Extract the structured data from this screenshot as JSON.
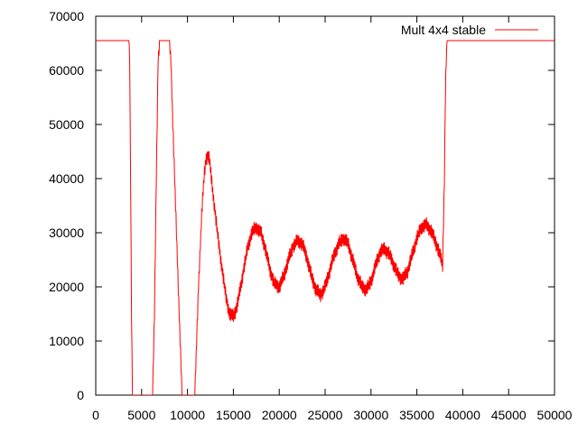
{
  "chart_data": {
    "type": "line",
    "title": "",
    "xlabel": "",
    "ylabel": "",
    "xlim": [
      0,
      50000
    ],
    "ylim": [
      0,
      70000
    ],
    "x_ticks": [
      0,
      5000,
      10000,
      15000,
      20000,
      25000,
      30000,
      35000,
      40000,
      45000,
      50000
    ],
    "y_ticks": [
      0,
      10000,
      20000,
      30000,
      40000,
      50000,
      60000,
      70000
    ],
    "x_tick_labels": [
      "0",
      "5000",
      "10000",
      "15000",
      "20000",
      "25000",
      "30000",
      "35000",
      "40000",
      "45000",
      "50000"
    ],
    "y_tick_labels": [
      "0",
      "10000",
      "20000",
      "30000",
      "40000",
      "50000",
      "60000",
      "70000"
    ],
    "grid": false,
    "legend_position": "top-right",
    "series": [
      {
        "name": "Mult 4x4 stable",
        "color": "#ff0000",
        "noise_amplitude": 1500,
        "x": [
          0,
          3600,
          3700,
          3800,
          3900,
          4000,
          6200,
          6400,
          6600,
          6800,
          7000,
          8000,
          8200,
          8400,
          8600,
          8800,
          9000,
          9200,
          9400,
          10800,
          11000,
          11200,
          11400,
          11600,
          11800,
          12000,
          12200,
          12400,
          12600,
          12800,
          13000,
          13400,
          13800,
          14200,
          14600,
          15000,
          15400,
          15800,
          16200,
          16600,
          17000,
          17500,
          18000,
          18500,
          19000,
          19500,
          20000,
          20500,
          21000,
          21500,
          22000,
          22500,
          23000,
          23500,
          24000,
          24500,
          25000,
          25500,
          26000,
          26500,
          27000,
          27500,
          28000,
          28500,
          29000,
          29500,
          30000,
          30500,
          31000,
          31500,
          32000,
          32500,
          33000,
          33500,
          34000,
          34500,
          35000,
          35500,
          36000,
          36500,
          37000,
          37500,
          37800,
          38000,
          38100,
          38200,
          38300,
          38400,
          50000
        ],
        "y": [
          65500,
          65500,
          62000,
          40000,
          15000,
          0,
          0,
          15000,
          40000,
          62000,
          65500,
          65500,
          62000,
          50000,
          40000,
          30000,
          20000,
          10000,
          0,
          0,
          10000,
          20000,
          28000,
          35000,
          40000,
          43500,
          44500,
          43500,
          40000,
          37000,
          34000,
          28000,
          23000,
          18000,
          15000,
          14500,
          16500,
          20000,
          24000,
          27500,
          30000,
          31000,
          30000,
          27000,
          23000,
          20500,
          20000,
          22000,
          25000,
          27500,
          28500,
          28000,
          25500,
          22000,
          19500,
          18500,
          20000,
          23000,
          26000,
          28000,
          29000,
          28000,
          25000,
          22000,
          20000,
          19500,
          21000,
          24000,
          26500,
          27000,
          26000,
          24000,
          22000,
          21500,
          23000,
          26000,
          29000,
          31000,
          31500,
          30500,
          28500,
          26000,
          24000,
          40000,
          55000,
          62000,
          65500,
          65500,
          65500
        ]
      }
    ]
  }
}
